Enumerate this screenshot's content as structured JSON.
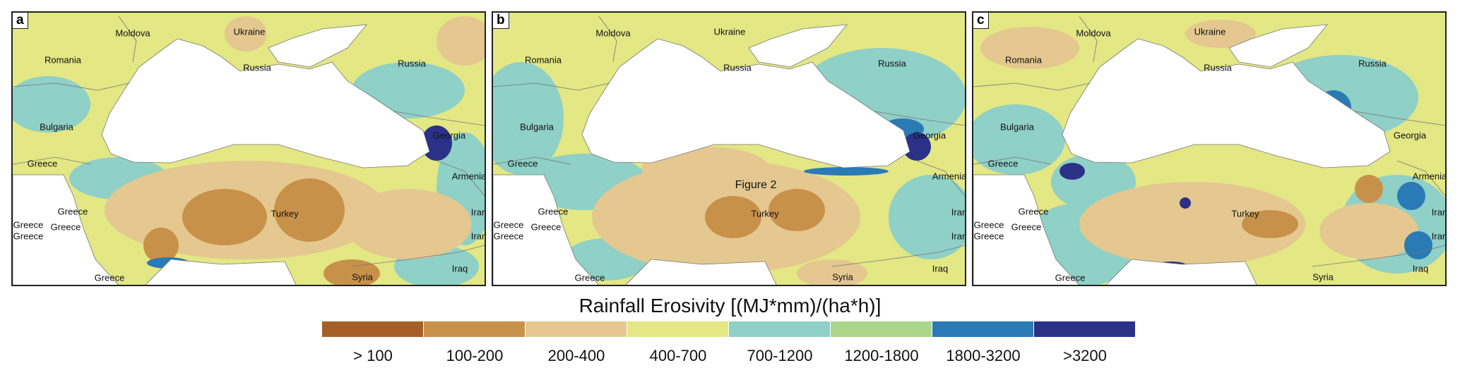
{
  "panels": [
    {
      "letter": "a",
      "labels": [
        "Moldova",
        "Ukraine",
        "Romania",
        "Russia",
        "Russia",
        "Bulgaria",
        "Georgia",
        "Greece",
        "Armenia",
        "Greece",
        "Turkey",
        "Greece",
        "Greece",
        "Greece",
        "Iran",
        "Iran",
        "Greece",
        "Syria",
        "Iraq"
      ]
    },
    {
      "letter": "b",
      "labels": [
        "Moldova",
        "Ukraine",
        "Romania",
        "Russia",
        "Russia",
        "Bulgaria",
        "Georgia",
        "Greece",
        "Armenia",
        "Greece",
        "Turkey",
        "Greece",
        "Greece",
        "Greece",
        "Iran",
        "Iran",
        "Greece",
        "Syria",
        "Iraq"
      ],
      "annotation": "Figure 2"
    },
    {
      "letter": "c",
      "labels": [
        "Moldova",
        "Ukraine",
        "Romania",
        "Russia",
        "Russia",
        "Bulgaria",
        "Georgia",
        "Greece",
        "Armenia",
        "Greece",
        "Turkey",
        "Greece",
        "Greece",
        "Greece",
        "Iran",
        "Iran",
        "Greece",
        "Syria",
        "Iraq"
      ]
    }
  ],
  "legend": {
    "title": "Rainfall Erosivity [(MJ*mm)/(ha*h)]",
    "classes": [
      {
        "label": "> 100",
        "color": "#a65f27"
      },
      {
        "label": "100-200",
        "color": "#c8914a"
      },
      {
        "label": "200-400",
        "color": "#e4c890"
      },
      {
        "label": "400-700",
        "color": "#e3e784"
      },
      {
        "label": "700-1200",
        "color": "#8fd0c7"
      },
      {
        "label": "1200-1800",
        "color": "#abd68a"
      },
      {
        "label": "1800-3200",
        "color": "#2a7ab5"
      },
      {
        "label": ">3200",
        "color": "#2b3187"
      }
    ]
  }
}
